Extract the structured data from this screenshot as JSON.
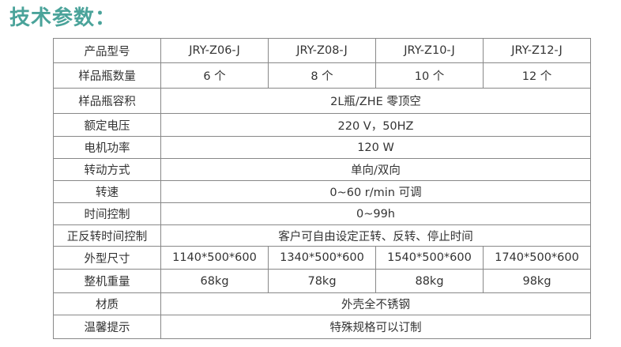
{
  "title": "技术参数：",
  "colors": {
    "title": "#4aa39a",
    "border": "#888888",
    "text": "#333333"
  },
  "table": {
    "rows": [
      {
        "label": "产品型号",
        "cells": [
          "JRY-Z06-J",
          "JRY-Z08-J",
          "JRY-Z10-J",
          "JRY-Z12-J"
        ]
      },
      {
        "label": "样品瓶数量",
        "cells": [
          "6 个",
          "8 个",
          "10 个",
          "12 个"
        ]
      },
      {
        "label": "样品瓶容积",
        "span": "2L瓶/ZHE 零顶空"
      },
      {
        "label": "额定电压",
        "span": "220 V，50HZ"
      },
      {
        "label": "电机功率",
        "span": "120 W"
      },
      {
        "label": "转动方式",
        "span": "单向/双向"
      },
      {
        "label": "转速",
        "span": "0~60 r/min 可调"
      },
      {
        "label": "时间控制",
        "span": "0~99h"
      },
      {
        "label": "正反转时间控制",
        "span": "客户可自由设定正转、反转、停止时间"
      },
      {
        "label": "外型尺寸",
        "cells": [
          "1140*500*600",
          "1340*500*600",
          "1540*500*600",
          "1740*500*600"
        ]
      },
      {
        "label": "整机重量",
        "cells": [
          "68kg",
          "78kg",
          "88kg",
          "98kg"
        ]
      },
      {
        "label": "材质",
        "span": "外壳全不锈钢"
      },
      {
        "label": "温馨提示",
        "span": "特殊规格可以订制"
      }
    ]
  }
}
